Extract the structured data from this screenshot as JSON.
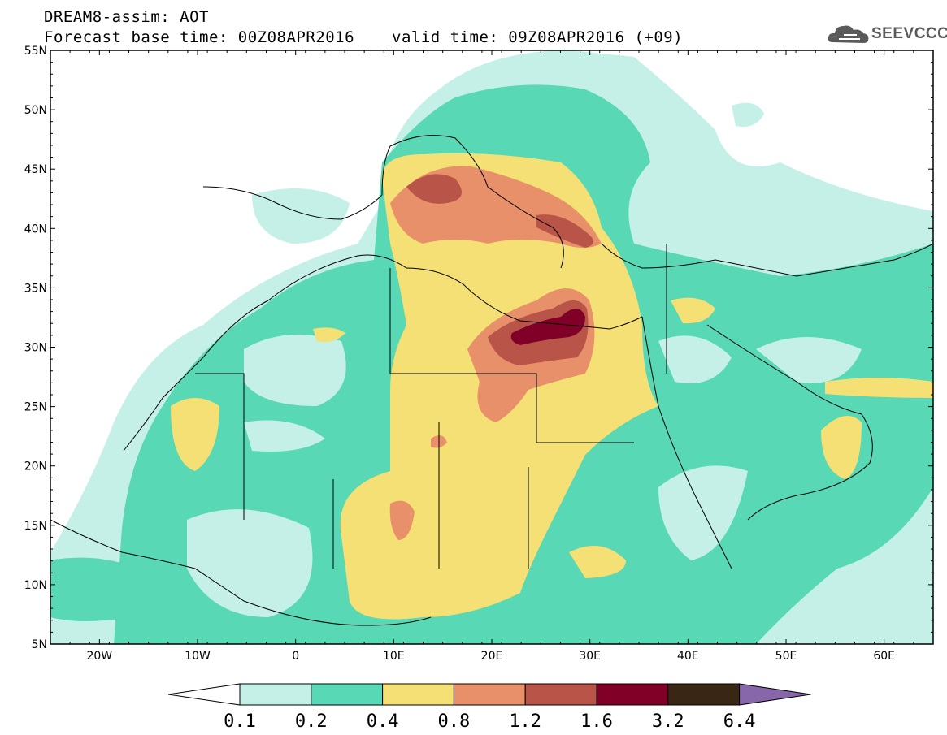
{
  "header": {
    "line1": "DREAM8-assim: AOT",
    "line2": "Forecast base time: 00Z08APR2016",
    "valid": "valid time: 09Z08APR2016 (+09)",
    "logo_text": "SEEVCCC",
    "logo_icon": "cloud-icon"
  },
  "map": {
    "lon_range": [
      -25,
      65
    ],
    "lat_range": [
      5,
      55
    ],
    "lat_ticks": [
      "55N",
      "50N",
      "45N",
      "40N",
      "35N",
      "30N",
      "25N",
      "20N",
      "15N",
      "10N",
      "5N"
    ],
    "lon_ticks": [
      "20W",
      "10W",
      "0",
      "10E",
      "20E",
      "30E",
      "40E",
      "50E",
      "60E"
    ]
  },
  "colorbar": {
    "labels": [
      "0.1",
      "0.2",
      "0.4",
      "0.8",
      "1.2",
      "1.6",
      "3.2",
      "6.4"
    ],
    "colors": [
      "#ffffff",
      "#c4f0e8",
      "#58d8b4",
      "#f4e074",
      "#e8906a",
      "#b85448",
      "#800028",
      "#3a2614",
      "#8866aa"
    ]
  }
}
